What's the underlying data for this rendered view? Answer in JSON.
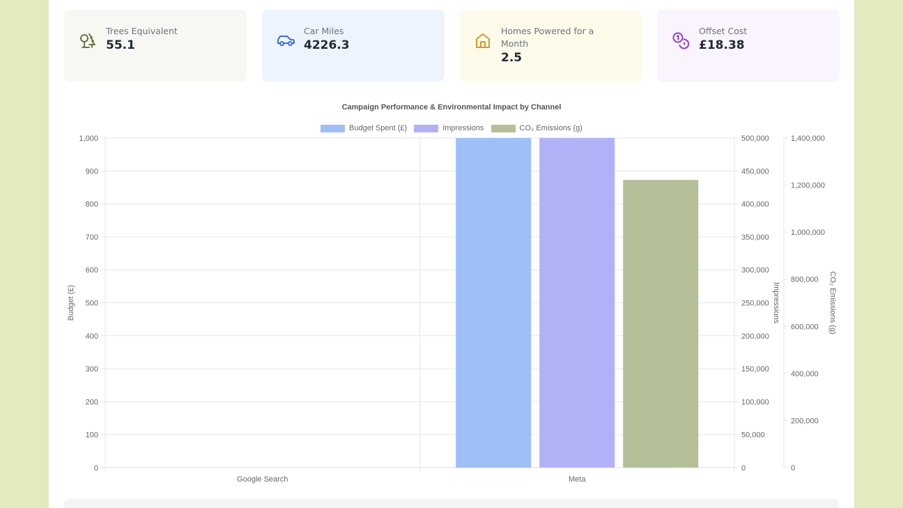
{
  "cards": [
    {
      "label": "Trees Equivalent",
      "value": "55.1",
      "icon": "tree-icon",
      "bg": "#f7f8f3",
      "icon_color": "#5a6b2e"
    },
    {
      "label": "Car Miles",
      "value": "4226.3",
      "icon": "car-icon",
      "bg": "#edf4fe",
      "icon_color": "#3b6fd8"
    },
    {
      "label": "Homes Powered for a Month",
      "value": "2.5",
      "icon": "home-icon",
      "bg": "#fefbea",
      "icon_color": "#d09a2a"
    },
    {
      "label": "Offset Cost",
      "value": "£18.38",
      "icon": "coins-icon",
      "bg": "#f9f4fe",
      "icon_color": "#8b3fd6"
    }
  ],
  "chart_data": {
    "type": "bar",
    "title": "Campaign Performance & Environmental Impact by Channel",
    "categories": [
      "Google Search",
      "Meta"
    ],
    "series": [
      {
        "name": "Budget Spent (£)",
        "axis": "y",
        "color": "#9ebff8",
        "values": [
          0,
          1000
        ]
      },
      {
        "name": "Impressions",
        "axis": "y1",
        "color": "#b1b1f8",
        "values": [
          0,
          500000
        ]
      },
      {
        "name": "CO₂ Emissions (g)",
        "axis": "y2",
        "color": "#b4bf97",
        "values": [
          0,
          1222000
        ]
      }
    ],
    "axes": {
      "y": {
        "label": "Budget (£)",
        "range": [
          0,
          1000
        ],
        "ticks": [
          "0",
          "100",
          "200",
          "300",
          "400",
          "500",
          "600",
          "700",
          "800",
          "900",
          "1,000"
        ]
      },
      "y1": {
        "label": "Impressions",
        "range": [
          0,
          500000
        ],
        "ticks": [
          "0",
          "50,000",
          "100,000",
          "150,000",
          "200,000",
          "250,000",
          "300,000",
          "350,000",
          "400,000",
          "450,000",
          "500,000"
        ]
      },
      "y2": {
        "label": "CO₂ Emissions (g)",
        "range": [
          0,
          1400000
        ],
        "ticks": [
          "0",
          "200,000",
          "400,000",
          "600,000",
          "800,000",
          "1,000,000",
          "1,200,000",
          "1,400,000"
        ]
      }
    },
    "legend_position": "top-center",
    "grid": true,
    "note": "Budget and Impressions bars for Meta reach/exceed the axis maximum (clipped)"
  }
}
